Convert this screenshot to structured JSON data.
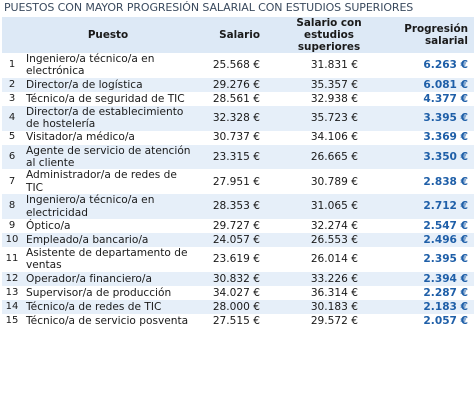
{
  "title": "PUESTOS CON MAYOR PROGRESIÓN SALARIAL CON ESTUDIOS SUPERIORES",
  "table": {
    "header": [
      "Puesto",
      "Salario",
      "Salario con estudios superiores",
      "Progresión salarial"
    ],
    "rows": [
      [
        1,
        "Ingeniero/a técnico/a en electrónica",
        "25.568 €",
        "31.831 €",
        "6.263 €"
      ],
      [
        2,
        "Director/a de logística",
        "29.276 €",
        "35.357 €",
        "6.081 €"
      ],
      [
        3,
        "Técnico/a de seguridad de TIC",
        "28.561 €",
        "32.938 €",
        "4.377 €"
      ],
      [
        4,
        "Director/a de establecimiento de hostelería",
        "32.328 €",
        "35.723 €",
        "3.395 €"
      ],
      [
        5,
        "Visitador/a médico/a",
        "30.737 €",
        "34.106 €",
        "3.369 €"
      ],
      [
        6,
        "Agente de servicio de atención al cliente",
        "23.315 €",
        "26.665 €",
        "3.350 €"
      ],
      [
        7,
        "Administrador/a de redes de TIC",
        "27.951 €",
        "30.789 €",
        "2.838 €"
      ],
      [
        8,
        "Ingeniero/a técnico/a en electricidad",
        "28.353 €",
        "31.065 €",
        "2.712 €"
      ],
      [
        9,
        "Óptico/a",
        "29.727 €",
        "32.274 €",
        "2.547 €"
      ],
      [
        10,
        "Empleado/a bancario/a",
        "24.057 €",
        "26.553 €",
        "2.496 €"
      ],
      [
        11,
        "Asistente de departamento de ventas",
        "23.619 €",
        "26.014 €",
        "2.395 €"
      ],
      [
        12,
        "Operador/a financiero/a",
        "30.832 €",
        "33.226 €",
        "2.394 €"
      ],
      [
        13,
        "Supervisor/a de producción",
        "34.027 €",
        "36.314 €",
        "2.287 €"
      ],
      [
        14,
        "Técnico/a de redes de TIC",
        "28.000 €",
        "30.183 €",
        "2.183 €"
      ],
      [
        15,
        "Técnico/a de servicio posventa",
        "27.515 €",
        "29.572 €",
        "2.057 €"
      ]
    ]
  }
}
